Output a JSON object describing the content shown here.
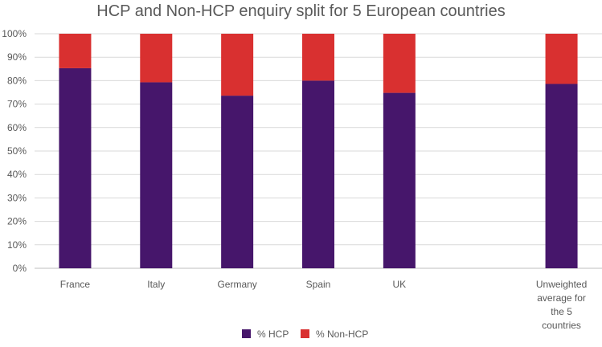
{
  "chart_data": {
    "type": "bar",
    "stacked": true,
    "title": "HCP and Non-HCP enquiry split for 5 European countries",
    "categories": [
      "France",
      "Italy",
      "Germany",
      "Spain",
      "UK",
      "",
      "Unweighted average for the 5 countries"
    ],
    "series": [
      {
        "name": "% HCP",
        "color": "#46166b",
        "values": [
          85.3,
          79.3,
          73.6,
          80.0,
          74.8,
          null,
          78.6
        ]
      },
      {
        "name": "% Non-HCP",
        "color": "#d93030",
        "values": [
          14.7,
          20.7,
          26.4,
          20.0,
          25.2,
          null,
          21.4
        ]
      }
    ],
    "y_ticks": [
      "0%",
      "10%",
      "20%",
      "30%",
      "40%",
      "50%",
      "60%",
      "70%",
      "80%",
      "90%",
      "100%"
    ],
    "ylim": [
      0,
      100
    ],
    "grid": true,
    "legend_position": "bottom"
  }
}
